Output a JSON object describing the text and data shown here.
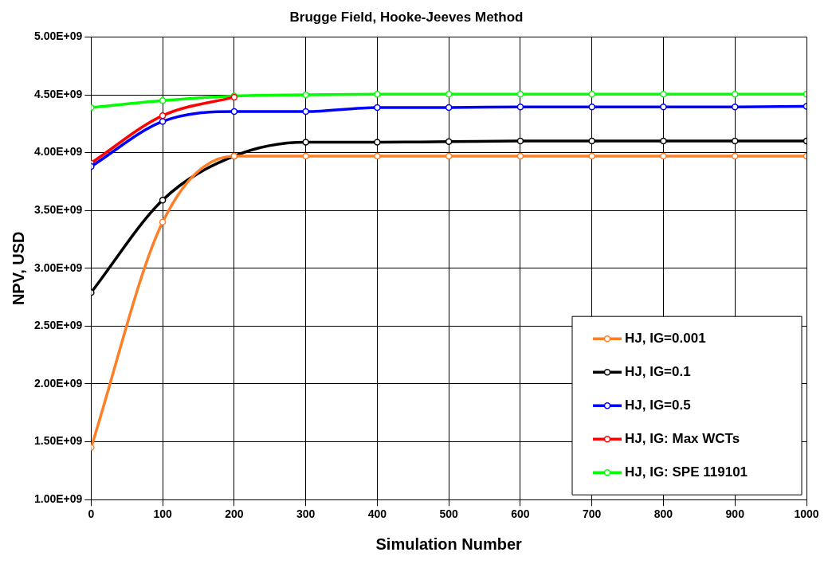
{
  "chart_data": {
    "type": "line",
    "title": "Brugge Field, Hooke-Jeeves Method",
    "xlabel": "Simulation Number",
    "ylabel": "NPV, USD",
    "x": [
      0,
      100,
      200,
      300,
      400,
      500,
      600,
      700,
      800,
      900,
      1000
    ],
    "xlim": [
      0,
      1000
    ],
    "xticks": [
      0,
      100,
      200,
      300,
      400,
      500,
      600,
      700,
      800,
      900,
      1000
    ],
    "ylim": [
      1000000000,
      5000000000
    ],
    "yticks": [
      {
        "value": 1000000000,
        "label": "1.00E+09"
      },
      {
        "value": 1500000000,
        "label": "1.50E+09"
      },
      {
        "value": 2000000000,
        "label": "2.00E+09"
      },
      {
        "value": 2500000000,
        "label": "2.50E+09"
      },
      {
        "value": 3000000000,
        "label": "3.00E+09"
      },
      {
        "value": 3500000000,
        "label": "3.50E+09"
      },
      {
        "value": 4000000000,
        "label": "4.00E+09"
      },
      {
        "value": 4500000000,
        "label": "4.50E+09"
      },
      {
        "value": 5000000000,
        "label": "5.00E+09"
      }
    ],
    "grid": true,
    "legend": "bottom right",
    "marker": "circle",
    "line_style": "solid",
    "series": [
      {
        "name": "HJ, IG=0.001",
        "color": "#ff7f27",
        "values": [
          1450000000,
          3400000000,
          3970000000,
          3970000000,
          3970000000,
          3970000000,
          3970000000,
          3970000000,
          3970000000,
          3970000000,
          3970000000
        ]
      },
      {
        "name": "HJ, IG=0.1",
        "color": "#000000",
        "values": [
          2790000000,
          3590000000,
          3970000000,
          4090000000,
          4090000000,
          4095000000,
          4100000000,
          4100000000,
          4100000000,
          4100000000,
          4100000000
        ]
      },
      {
        "name": "HJ, IG=0.5",
        "color": "#0000ff",
        "values": [
          3880000000,
          4270000000,
          4355000000,
          4355000000,
          4390000000,
          4390000000,
          4395000000,
          4395000000,
          4395000000,
          4395000000,
          4400000000
        ]
      },
      {
        "name": "HJ, IG: Max WCTs",
        "color": "#ff0000",
        "values": [
          3910000000,
          4320000000,
          4480000000,
          null,
          null,
          null,
          null,
          null,
          null,
          null,
          null
        ]
      },
      {
        "name": "HJ, IG: SPE 119101",
        "color": "#00ff00",
        "values": [
          4390000000,
          4450000000,
          4490000000,
          4500000000,
          4505000000,
          4505000000,
          4505000000,
          4505000000,
          4505000000,
          4505000000,
          4505000000
        ]
      }
    ]
  }
}
